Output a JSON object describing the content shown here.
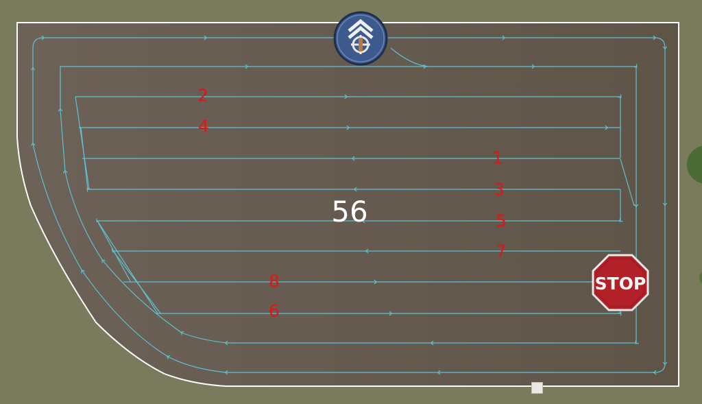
{
  "field": {
    "number": "56",
    "boundary_color": "#ffffff",
    "course_color": "#5ec2d3",
    "ground_color": "#6d6258",
    "grass_color": "#7a7a5c"
  },
  "lanes": [
    {
      "label": "1"
    },
    {
      "label": "2"
    },
    {
      "label": "3"
    },
    {
      "label": "4"
    },
    {
      "label": "5"
    },
    {
      "label": "6"
    },
    {
      "label": "7"
    },
    {
      "label": "8"
    }
  ],
  "markers": {
    "start_icon": "start-arrow-icon",
    "stop_label": "STOP",
    "stop_icon": "stop-sign-icon",
    "end_handle_icon": "square-handle-icon"
  }
}
